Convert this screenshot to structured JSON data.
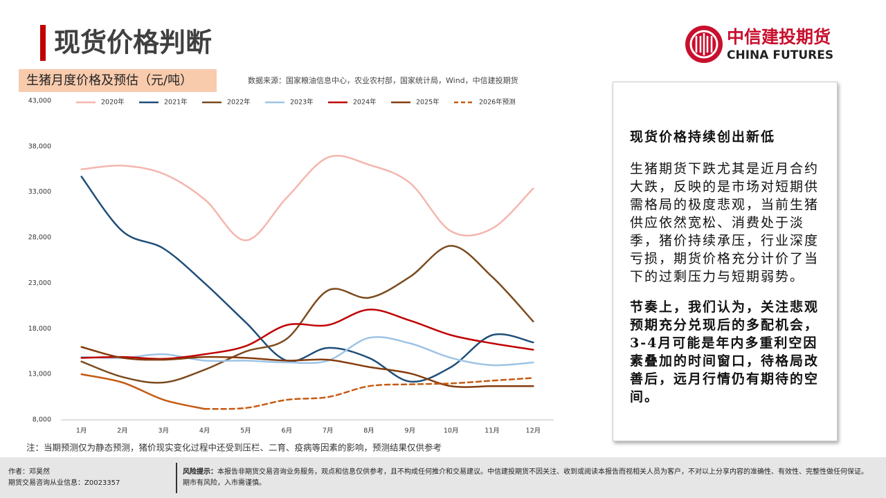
{
  "header": {
    "title": "现货价格判断",
    "logo_cn": "中信建投期货",
    "logo_en": "CHINA FUTURES"
  },
  "chart_data": {
    "type": "line",
    "title": "生猪月度价格及预估（元/吨）",
    "source": "数据来源：国家粮油信息中心，农业农村部，国家统计局，Wind，中信建投期货",
    "categories": [
      "1月",
      "2月",
      "3月",
      "4月",
      "5月",
      "6月",
      "7月",
      "8月",
      "9月",
      "10月",
      "11月",
      "12月"
    ],
    "ylim": [
      8000,
      43000
    ],
    "yticks": [
      {
        "value": 8000,
        "label": "8,000"
      },
      {
        "value": 13000,
        "label": "13,000"
      },
      {
        "value": 18000,
        "label": "18,000"
      },
      {
        "value": 23000,
        "label": "23,000"
      },
      {
        "value": 28000,
        "label": "28,000"
      },
      {
        "value": 33000,
        "label": "33,000"
      },
      {
        "value": 38000,
        "label": "38,000"
      },
      {
        "value": 43000,
        "label": "43,000"
      }
    ],
    "series": [
      {
        "name": "2020年",
        "color": "#f4b6ad",
        "values": [
          35500,
          35900,
          35000,
          32200,
          27700,
          32400,
          36800,
          36000,
          34000,
          28700,
          29000,
          33400
        ]
      },
      {
        "name": "2021年",
        "color": "#1f4e79",
        "values": [
          34700,
          28700,
          26800,
          23000,
          18700,
          14500,
          15900,
          14800,
          12200,
          13800,
          17300,
          16500
        ]
      },
      {
        "name": "2022年",
        "color": "#7b4a1e",
        "values": [
          14400,
          12700,
          12100,
          13500,
          15500,
          16900,
          22200,
          21400,
          23700,
          27100,
          23700,
          18800
        ]
      },
      {
        "name": "2023年",
        "color": "#9dc3e6",
        "values": [
          14900,
          14800,
          15200,
          14500,
          14500,
          14300,
          14500,
          17000,
          16400,
          14800,
          14000,
          14300
        ]
      },
      {
        "name": "2024年",
        "color": "#c00000",
        "values": [
          14800,
          14900,
          14700,
          15200,
          16100,
          18400,
          18400,
          20100,
          18900,
          17300,
          16400,
          15700
        ]
      },
      {
        "name": "2025年",
        "color": "#843c0c",
        "values": [
          16000,
          14800,
          14600,
          14900,
          14800,
          14500,
          14600,
          13800,
          13100,
          11700,
          11700,
          11700
        ]
      },
      {
        "color": "#c55a11",
        "values": [
          13000,
          12100,
          10200,
          9200,
          null,
          null,
          null,
          null,
          null,
          null,
          null,
          null
        ]
      },
      {
        "name": "2026年预测",
        "color": "#c55a11",
        "dashed": true,
        "values": [
          null,
          null,
          null,
          9200,
          9300,
          10200,
          10500,
          11700,
          11900,
          12000,
          12300,
          12600
        ]
      }
    ],
    "note": "注：当期预测仅为静态预测，猪价现实变化过程中还受到压栏、二育、疫病等因素的影响，预测结果仅供参考"
  },
  "panel": {
    "heading": "现货价格持续创出新低",
    "paragraphs": [
      "生猪期货下跌尤其是近月合约大跌，反映的是市场对短期供需格局的极度悲观，当前生猪供应依然宽松、消费处于淡季，猪价持续承压，行业深度亏损，期货价格充分计价了当下的过剩压力与短期弱势。",
      "节奏上，我们认为，关注悲观预期充分兑现后的多配机会，3-4月可能是年内多重利空因素叠加的时间窗口，待格局改善后，远月行情仍有期待的空间。"
    ]
  },
  "footer": {
    "author": "作者：邓昊然",
    "license": "期货交易咨询从业信息：Z0023357",
    "risk_label": "风险提示：",
    "risk_text": "本报告非期货交易咨询业务服务，观点和信息仅供参考，且不构成任何推介和交易建议。中信建投期货不因关注、收到或阅读本报告而视相关人员为客户，不对以上分享内容的准确性、有效性、完整性做任何保证。期市有风险，入市需谨慎。"
  }
}
